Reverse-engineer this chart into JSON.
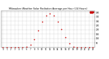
{
  "title": "Milwaukee Weather Solar Radiation Average per Hour (24 Hours)",
  "x_hours": [
    0,
    1,
    2,
    3,
    4,
    5,
    6,
    7,
    8,
    9,
    10,
    11,
    12,
    13,
    14,
    15,
    16,
    17,
    18,
    19,
    20,
    21,
    22,
    23
  ],
  "solar_radiation": [
    0,
    0,
    0,
    0,
    0,
    0,
    2,
    25,
    90,
    195,
    290,
    360,
    385,
    360,
    295,
    210,
    115,
    40,
    5,
    0,
    0,
    0,
    0,
    0
  ],
  "dot_color": "#cc0000",
  "bg_color": "#ffffff",
  "grid_color": "#999999",
  "legend_color": "#cc0000",
  "ylim": [
    0,
    420
  ],
  "xlim": [
    -0.5,
    23.5
  ],
  "ytick_values": [
    50,
    100,
    150,
    200,
    250,
    300,
    350,
    400
  ],
  "xtick_values": [
    0,
    1,
    2,
    3,
    4,
    5,
    6,
    7,
    8,
    9,
    10,
    11,
    12,
    13,
    14,
    15,
    16,
    17,
    18,
    19,
    20,
    21,
    22,
    23
  ],
  "title_fontsize": 2.5,
  "tick_fontsize": 2.0,
  "dot_size": 1.5
}
